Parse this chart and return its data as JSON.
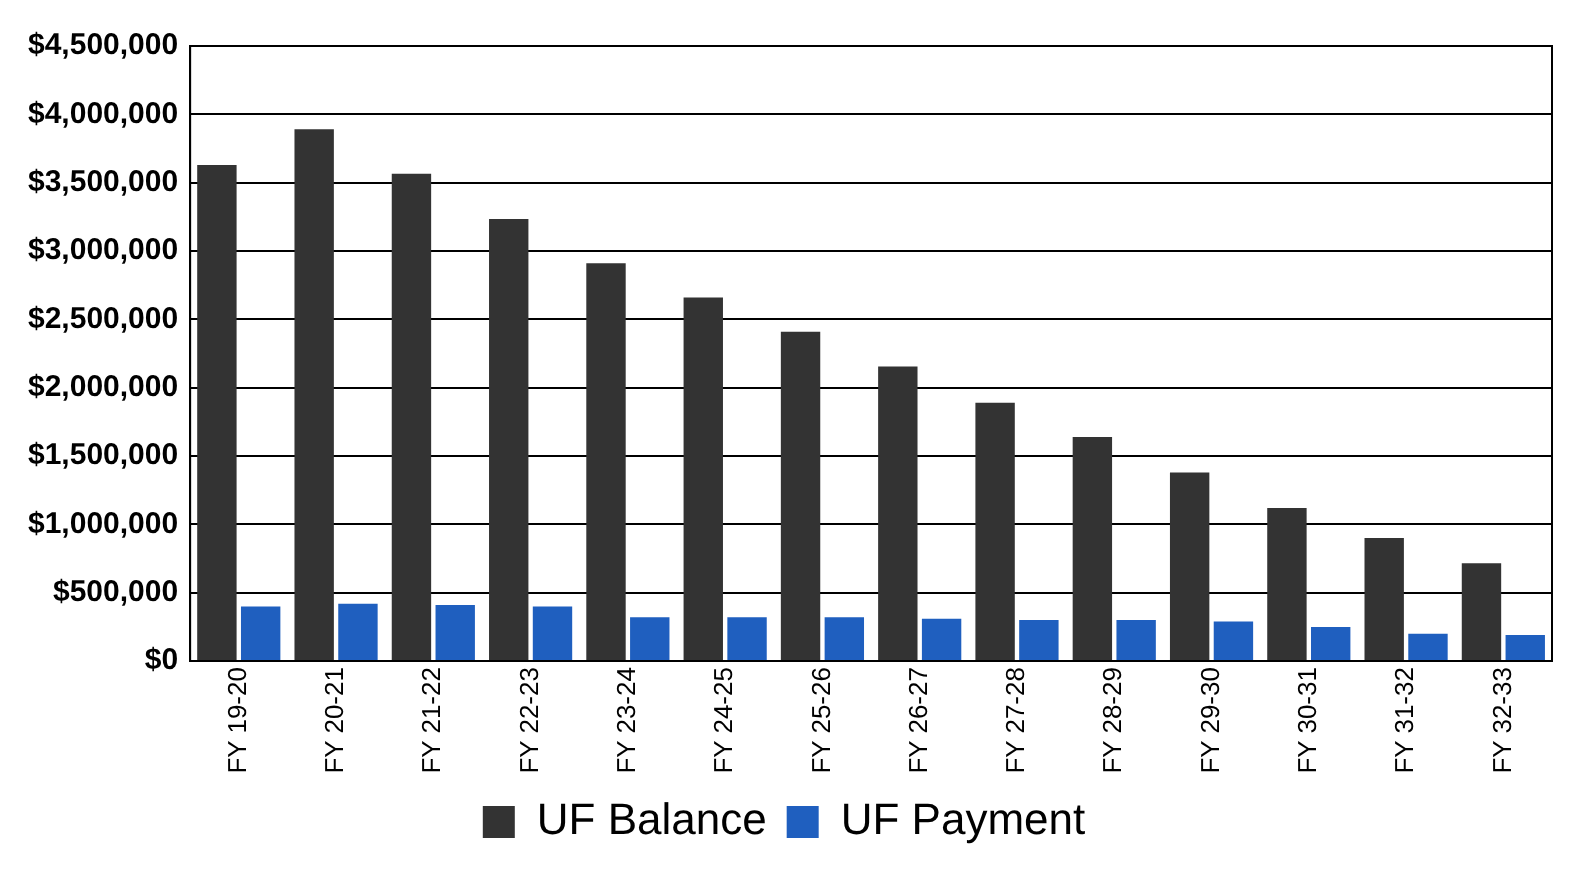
{
  "chart_data": {
    "type": "bar",
    "categories": [
      "FY 19-20",
      "FY 20-21",
      "FY 21-22",
      "FY 22-23",
      "FY 23-24",
      "FY 24-25",
      "FY 25-26",
      "FY 26-27",
      "FY 27-28",
      "FY 28-29",
      "FY 29-30",
      "FY 30-31",
      "FY 31-32",
      "FY 32-33"
    ],
    "series": [
      {
        "name": "UF Balance",
        "color": "#333333",
        "values": [
          3630000,
          3890000,
          3565000,
          3235000,
          2910000,
          2660000,
          2410000,
          2155000,
          1890000,
          1640000,
          1380000,
          1120000,
          900000,
          715000
        ]
      },
      {
        "name": "UF Payment",
        "color": "#1f5fbf",
        "values": [
          400000,
          420000,
          410000,
          400000,
          320000,
          320000,
          320000,
          310000,
          300000,
          300000,
          290000,
          250000,
          200000,
          190000
        ]
      }
    ],
    "ylim": [
      0,
      4500000
    ],
    "yticks": [
      {
        "value": 0,
        "label": "$0"
      },
      {
        "value": 500000,
        "label": "$500,000"
      },
      {
        "value": 1000000,
        "label": "$1,000,000"
      },
      {
        "value": 1500000,
        "label": "$1,500,000"
      },
      {
        "value": 2000000,
        "label": "$2,000,000"
      },
      {
        "value": 2500000,
        "label": "$2,500,000"
      },
      {
        "value": 3000000,
        "label": "$3,000,000"
      },
      {
        "value": 3500000,
        "label": "$3,500,000"
      },
      {
        "value": 4000000,
        "label": "$4,000,000"
      },
      {
        "value": 4500000,
        "label": "$4,500,000"
      }
    ],
    "grid": "y",
    "legend": "bottom"
  }
}
